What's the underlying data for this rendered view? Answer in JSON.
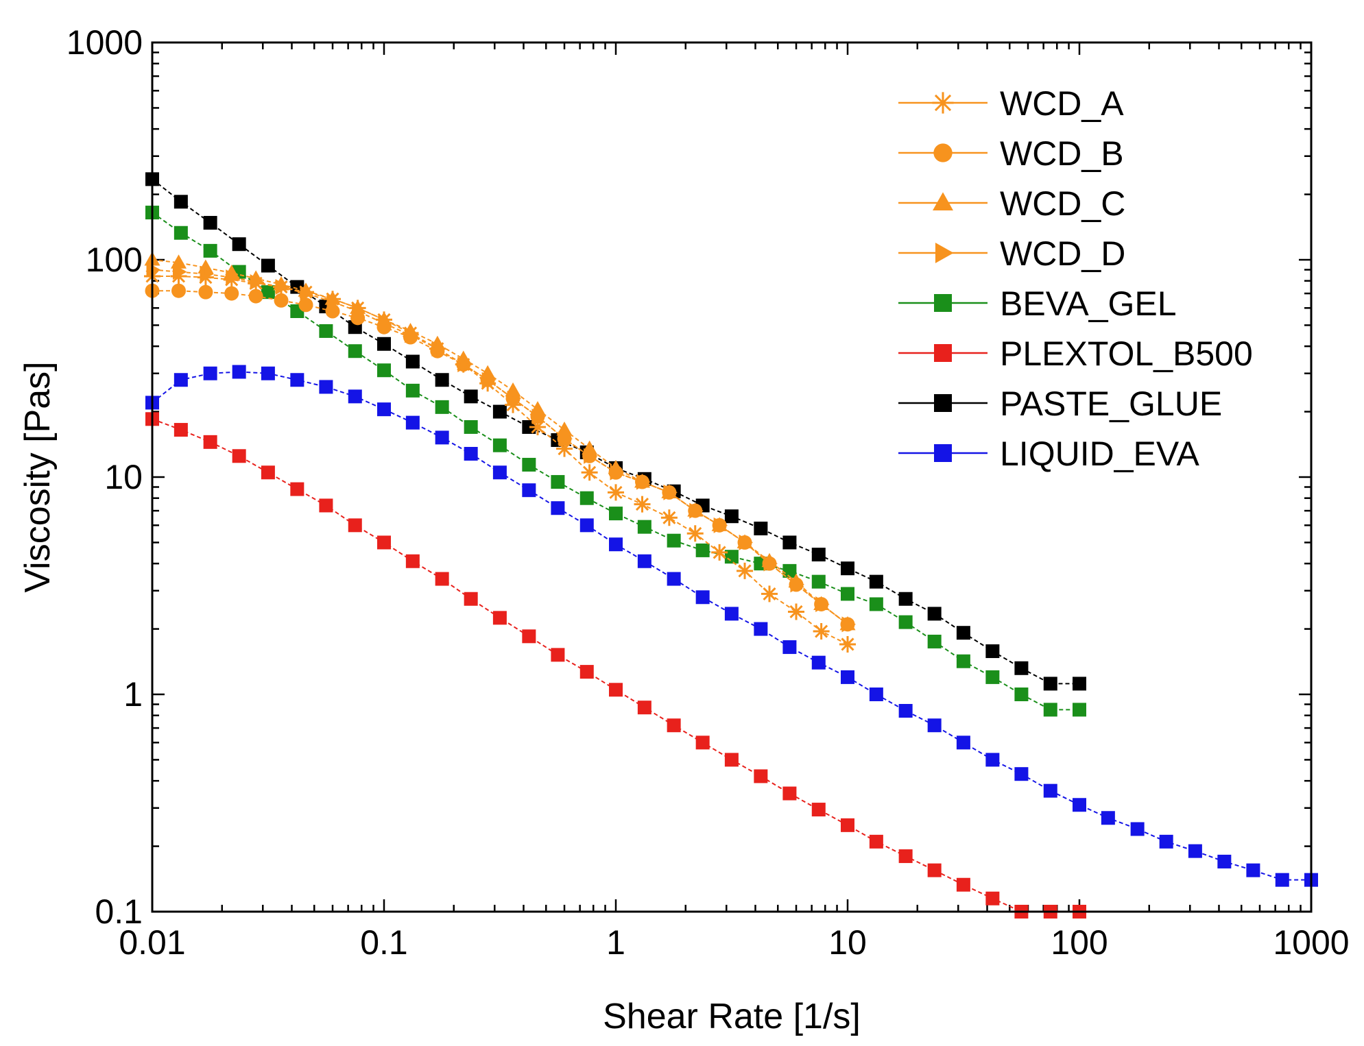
{
  "chart_data": {
    "type": "scatter",
    "title": "",
    "xlabel": "Shear Rate [1/s]",
    "ylabel": "Viscosity [Pas]",
    "xscale": "log",
    "yscale": "log",
    "xlim": [
      0.01,
      1000
    ],
    "ylim": [
      0.1,
      1000
    ],
    "xticks": [
      {
        "v": 0.01,
        "label": "0.01"
      },
      {
        "v": 0.1,
        "label": "0.1"
      },
      {
        "v": 1,
        "label": "1"
      },
      {
        "v": 10,
        "label": "10"
      },
      {
        "v": 100,
        "label": "100"
      },
      {
        "v": 1000,
        "label": "1000"
      }
    ],
    "yticks": [
      {
        "v": 0.1,
        "label": "0.1"
      },
      {
        "v": 1,
        "label": "1"
      },
      {
        "v": 10,
        "label": "10"
      },
      {
        "v": 100,
        "label": "100"
      },
      {
        "v": 1000,
        "label": "1000"
      }
    ],
    "legend_position": "top-right",
    "series": [
      {
        "name": "WCD_A",
        "color": "#f7931e",
        "marker": "star",
        "x": [
          0.01,
          0.013,
          0.017,
          0.022,
          0.028,
          0.036,
          0.046,
          0.06,
          0.077,
          0.1,
          0.13,
          0.17,
          0.22,
          0.28,
          0.36,
          0.46,
          0.6,
          0.77,
          1,
          1.3,
          1.7,
          2.2,
          2.8,
          3.6,
          4.6,
          6,
          7.7,
          10
        ],
        "y": [
          84,
          84,
          83,
          81,
          78,
          75,
          71,
          66,
          60,
          53,
          46,
          39,
          33,
          27,
          21.5,
          17,
          13.5,
          10.5,
          8.5,
          7.5,
          6.5,
          5.5,
          4.5,
          3.7,
          2.9,
          2.4,
          1.95,
          1.7
        ]
      },
      {
        "name": "WCD_B",
        "color": "#f7931e",
        "marker": "circle",
        "x": [
          0.01,
          0.013,
          0.017,
          0.022,
          0.028,
          0.036,
          0.046,
          0.06,
          0.077,
          0.1,
          0.13,
          0.17,
          0.22,
          0.28,
          0.36,
          0.46,
          0.6,
          0.77,
          1,
          1.3,
          1.7,
          2.2,
          2.8,
          3.6,
          4.6,
          6,
          7.7,
          10
        ],
        "y": [
          72,
          72,
          71,
          70,
          68,
          65,
          62,
          58,
          54,
          49,
          44,
          38,
          33,
          28,
          23,
          19,
          15,
          12.5,
          10.5,
          9.5,
          8.5,
          7,
          6,
          5,
          4,
          3.2,
          2.6,
          2.1
        ]
      },
      {
        "name": "WCD_C",
        "color": "#f7931e",
        "marker": "triangle-up",
        "x": [
          0.01,
          0.013,
          0.017,
          0.022,
          0.028,
          0.036,
          0.046,
          0.06,
          0.077,
          0.1,
          0.13,
          0.17,
          0.22,
          0.28,
          0.36,
          0.46,
          0.6,
          0.77,
          1,
          1.3,
          1.7,
          2.2,
          2.8,
          3.6,
          4.6,
          6,
          7.7,
          10
        ],
        "y": [
          100,
          97,
          92,
          87,
          82,
          77,
          72,
          66,
          60,
          53,
          47,
          41,
          35,
          30,
          25,
          20.5,
          16.5,
          13.5,
          11,
          9.5,
          8.5,
          7,
          6,
          5,
          4.1,
          3.3,
          2.6,
          2.1
        ]
      },
      {
        "name": "WCD_D",
        "color": "#f7931e",
        "marker": "triangle-right",
        "x": [
          0.01,
          0.013,
          0.017,
          0.022,
          0.028,
          0.036,
          0.046,
          0.06,
          0.077,
          0.1,
          0.13,
          0.17,
          0.22,
          0.28,
          0.36,
          0.46,
          0.6,
          0.77,
          1,
          1.3,
          1.7,
          2.2,
          2.8,
          3.6,
          4.6,
          6,
          7.7,
          10
        ],
        "y": [
          90,
          88,
          86,
          83,
          79,
          75,
          70,
          64,
          58,
          51,
          45,
          39,
          33,
          28,
          23,
          19,
          15,
          12.5,
          10.5,
          9.5,
          8.5,
          7,
          6,
          5,
          4,
          3.2,
          2.6,
          2.1
        ]
      },
      {
        "name": "BEVA_GEL",
        "color": "#1a8f1a",
        "marker": "square",
        "x": [
          0.01,
          0.0133,
          0.0178,
          0.0237,
          0.0316,
          0.0422,
          0.0562,
          0.075,
          0.1,
          0.133,
          0.178,
          0.237,
          0.316,
          0.422,
          0.562,
          0.75,
          1,
          1.33,
          1.78,
          2.37,
          3.16,
          4.22,
          5.62,
          7.5,
          10,
          13.3,
          17.8,
          23.7,
          31.6,
          42.2,
          56.2,
          75,
          100
        ],
        "y": [
          165,
          133,
          110,
          88,
          71,
          58,
          47,
          38,
          31,
          25,
          21,
          17,
          14,
          11.4,
          9.5,
          8,
          6.8,
          5.9,
          5.1,
          4.6,
          4.3,
          4.0,
          3.7,
          3.3,
          2.9,
          2.6,
          2.15,
          1.75,
          1.42,
          1.2,
          1.0,
          0.85,
          0.85
        ]
      },
      {
        "name": "PLEXTOL_B500",
        "color": "#e8211c",
        "marker": "square",
        "x": [
          0.01,
          0.0133,
          0.0178,
          0.0237,
          0.0316,
          0.0422,
          0.0562,
          0.075,
          0.1,
          0.133,
          0.178,
          0.237,
          0.316,
          0.422,
          0.562,
          0.75,
          1,
          1.33,
          1.78,
          2.37,
          3.16,
          4.22,
          5.62,
          7.5,
          10,
          13.3,
          17.8,
          23.7,
          31.6,
          42.2,
          56.2,
          75,
          100
        ],
        "y": [
          18.5,
          16.5,
          14.5,
          12.5,
          10.5,
          8.8,
          7.4,
          6.0,
          5.0,
          4.1,
          3.4,
          2.75,
          2.25,
          1.85,
          1.52,
          1.27,
          1.05,
          0.87,
          0.72,
          0.6,
          0.5,
          0.42,
          0.35,
          0.295,
          0.25,
          0.21,
          0.18,
          0.155,
          0.133,
          0.115,
          0.1,
          0.1,
          0.1
        ]
      },
      {
        "name": "PASTE_GLUE",
        "color": "#000000",
        "marker": "square",
        "x": [
          0.01,
          0.0133,
          0.0178,
          0.0237,
          0.0316,
          0.0422,
          0.0562,
          0.075,
          0.1,
          0.133,
          0.178,
          0.237,
          0.316,
          0.422,
          0.562,
          0.75,
          1,
          1.33,
          1.78,
          2.37,
          3.16,
          4.22,
          5.62,
          7.5,
          10,
          13.3,
          17.8,
          23.7,
          31.6,
          42.2,
          56.2,
          75,
          100
        ],
        "y": [
          235,
          185,
          148,
          118,
          94,
          75,
          61,
          49,
          41,
          34,
          28,
          23.5,
          20,
          17,
          14.8,
          13,
          11,
          9.8,
          8.6,
          7.4,
          6.6,
          5.8,
          5.0,
          4.4,
          3.8,
          3.3,
          2.75,
          2.35,
          1.92,
          1.58,
          1.32,
          1.12,
          1.12
        ]
      },
      {
        "name": "LIQUID_EVA",
        "color": "#1414e6",
        "marker": "square",
        "x": [
          0.01,
          0.0133,
          0.0178,
          0.0237,
          0.0316,
          0.0422,
          0.0562,
          0.075,
          0.1,
          0.133,
          0.178,
          0.237,
          0.316,
          0.422,
          0.562,
          0.75,
          1,
          1.33,
          1.78,
          2.37,
          3.16,
          4.22,
          5.62,
          7.5,
          10,
          13.3,
          17.8,
          23.7,
          31.6,
          42.2,
          56.2,
          75,
          100,
          133,
          178,
          237,
          316,
          422,
          562,
          750,
          1000
        ],
        "y": [
          22,
          28,
          30,
          30.5,
          30,
          28,
          26,
          23.5,
          20.5,
          17.8,
          15.2,
          12.8,
          10.5,
          8.7,
          7.2,
          6.0,
          4.9,
          4.1,
          3.4,
          2.8,
          2.35,
          2.0,
          1.65,
          1.4,
          1.2,
          1.0,
          0.84,
          0.72,
          0.6,
          0.5,
          0.43,
          0.36,
          0.31,
          0.27,
          0.24,
          0.21,
          0.19,
          0.17,
          0.155,
          0.14,
          0.14
        ]
      }
    ]
  }
}
